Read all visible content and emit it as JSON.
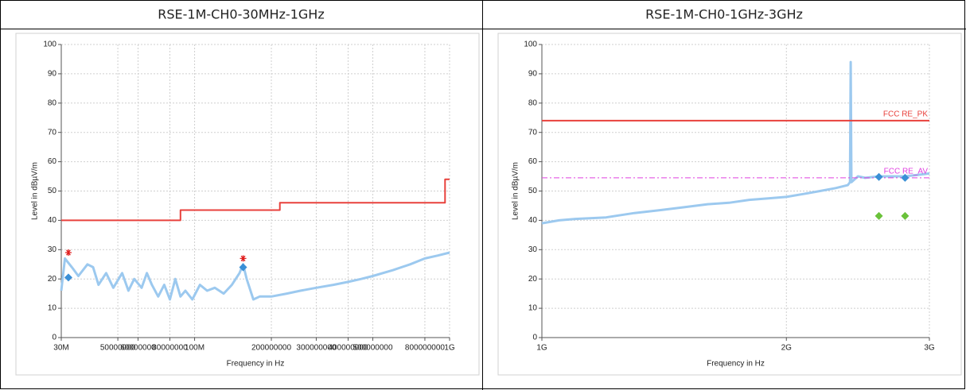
{
  "chart_data": [
    {
      "type": "line",
      "title": "RSE-1M-CH0-30MHz-1GHz",
      "xlabel": "Frequency in Hz",
      "ylabel": "Level in dBµV/m",
      "xlog": true,
      "grid": true,
      "xlim": [
        30000000,
        1000000000
      ],
      "xticks": [
        {
          "value": 30000000,
          "label": "30M"
        },
        50000000,
        60000000,
        80000000,
        {
          "value": 100000000,
          "label": "100M"
        },
        200000000,
        300000000,
        400000000,
        500000000,
        800000000,
        {
          "value": 1000000000,
          "label": "1G"
        }
      ],
      "ylim": [
        0,
        100
      ],
      "yticks": [
        0,
        10,
        20,
        30,
        40,
        50,
        60,
        70,
        80,
        90,
        100
      ],
      "series": [
        {
          "mark": "line",
          "color": "#9cc9ef",
          "width": 3,
          "x": [
            30000000,
            31000000,
            33000000,
            35000000,
            38000000,
            40000000,
            42000000,
            45000000,
            48000000,
            52000000,
            55000000,
            58000000,
            62000000,
            65000000,
            68000000,
            72000000,
            76000000,
            80000000,
            84000000,
            88000000,
            92000000,
            98000000,
            105000000,
            112000000,
            120000000,
            130000000,
            140000000,
            150000000,
            155000000,
            160000000,
            170000000,
            180000000,
            200000000,
            230000000,
            260000000,
            300000000,
            350000000,
            400000000,
            450000000,
            500000000,
            600000000,
            700000000,
            800000000,
            900000000,
            1000000000
          ],
          "values": [
            16,
            27,
            24,
            21,
            25,
            24,
            18,
            22,
            17,
            22,
            16,
            20,
            17,
            22,
            18,
            14,
            18,
            13,
            20,
            14,
            16,
            13,
            18,
            16,
            17,
            15,
            18,
            22,
            25,
            20,
            13,
            14,
            14,
            15,
            16,
            17,
            18,
            19,
            20,
            21,
            23,
            25,
            27,
            28,
            29
          ]
        },
        {
          "mark": "line",
          "color": "#e8413c",
          "width": 2,
          "x": [
            30000000,
            88000000,
            88000000,
            216000000,
            216000000,
            960000000,
            960000000,
            1000000000
          ],
          "values": [
            40,
            40,
            43.5,
            43.5,
            46,
            46,
            54,
            54
          ]
        },
        {
          "mark": "star",
          "color": "#e02020",
          "x": [
            32000000,
            155000000
          ],
          "values": [
            29,
            27
          ]
        },
        {
          "mark": "diamond",
          "color": "#3a8fd6",
          "x": [
            32000000,
            155000000
          ],
          "values": [
            20.5,
            24
          ]
        }
      ]
    },
    {
      "type": "line",
      "title": "RSE-1M-CH0-1GHz-3GHz",
      "xlabel": "Frequency in Hz",
      "ylabel": "Level in dBµV/m",
      "xlog": true,
      "grid": true,
      "xlim": [
        1000000000,
        3000000000
      ],
      "xticks": [
        {
          "value": 1000000000,
          "label": "1G"
        },
        {
          "value": 2000000000,
          "label": "2G"
        },
        {
          "value": 3000000000,
          "label": "3G"
        }
      ],
      "ylim": [
        0,
        100
      ],
      "yticks": [
        0,
        10,
        20,
        30,
        40,
        50,
        60,
        70,
        80,
        90,
        100
      ],
      "series": [
        {
          "mark": "line",
          "color": "#9cc9ef",
          "width": 3,
          "x": [
            1000000000,
            1050000000,
            1100000000,
            1200000000,
            1300000000,
            1400000000,
            1500000000,
            1600000000,
            1700000000,
            1800000000,
            1900000000,
            2000000000,
            2100000000,
            2200000000,
            2300000000,
            2380000000,
            2395000000,
            2400000000,
            2405000000,
            2450000000,
            2500000000,
            2600000000,
            2700000000,
            2800000000,
            2900000000,
            3000000000
          ],
          "values": [
            39,
            40,
            40.5,
            41,
            42.5,
            43.5,
            44.5,
            45.5,
            46,
            47,
            47.5,
            48,
            49,
            50,
            51,
            52,
            53,
            94,
            53,
            55,
            54.5,
            55,
            55,
            55,
            55.5,
            56
          ]
        },
        {
          "mark": "line",
          "name": "FCC RE_PK",
          "color": "#e8413c",
          "width": 2,
          "x": [
            1000000000,
            3000000000
          ],
          "values": [
            74,
            74
          ]
        },
        {
          "mark": "line",
          "name": "FCC RE_AV",
          "color": "#e040e0",
          "width": 1,
          "dash": true,
          "x": [
            1000000000,
            3000000000
          ],
          "values": [
            54.5,
            54.5
          ]
        },
        {
          "mark": "diamond",
          "color": "#3a8fd6",
          "x": [
            2600000000,
            2800000000
          ],
          "values": [
            54.8,
            54.5
          ]
        },
        {
          "mark": "diamond",
          "color": "#6ac23a",
          "x": [
            2600000000,
            2800000000
          ],
          "values": [
            41.5,
            41.5
          ]
        }
      ]
    }
  ]
}
